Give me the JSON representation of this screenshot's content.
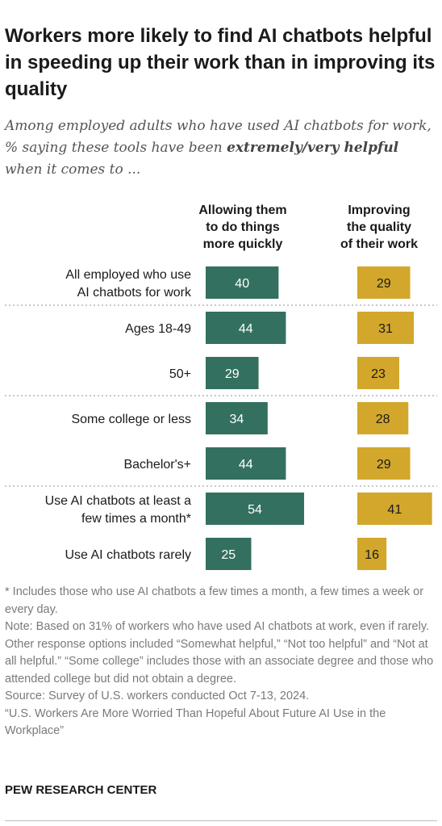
{
  "title": "Workers more likely to find AI chatbots helpful in speeding up their work than in improving its quality",
  "subtitle": {
    "before": "Among employed adults who have used AI chatbots for work, % saying these tools have been ",
    "emphasis": "extremely/very helpful",
    "after": " when it comes to ..."
  },
  "colors": {
    "series1": "#33705f",
    "series2": "#d2a72b",
    "divider": "#b5b5b5"
  },
  "chart_data": {
    "type": "bar",
    "orientation": "horizontal",
    "categories": [
      "All employed who use\nAI chatbots for work",
      "Ages 18-49",
      "50+",
      "Some college or less",
      "Bachelor's+",
      "Use AI chatbots at least a\nfew times a month*",
      "Use AI chatbots rarely"
    ],
    "series": [
      {
        "name": "Allowing them\nto do things\nmore quickly",
        "values": [
          40,
          44,
          29,
          34,
          44,
          54,
          25
        ]
      },
      {
        "name": "Improving\nthe quality\nof their work",
        "values": [
          29,
          31,
          23,
          28,
          29,
          41,
          16
        ]
      }
    ],
    "groups_after_index": [
      0,
      2,
      4
    ]
  },
  "notes": [
    "* Includes those who use AI chatbots a few times a month, a few times a week or every day.",
    "Note: Based on 31% of workers who have used AI chatbots at work, even if rarely. Other response options included “Somewhat helpful,” “Not too helpful” and “Not at all helpful.” “Some college” includes those with an associate degree and those who attended college but did not obtain a degree.",
    "Source: Survey of U.S. workers conducted Oct 7-13, 2024.",
    "“U.S. Workers Are More Worried Than Hopeful About Future AI Use in the Workplace”"
  ],
  "brand": "PEW RESEARCH CENTER"
}
